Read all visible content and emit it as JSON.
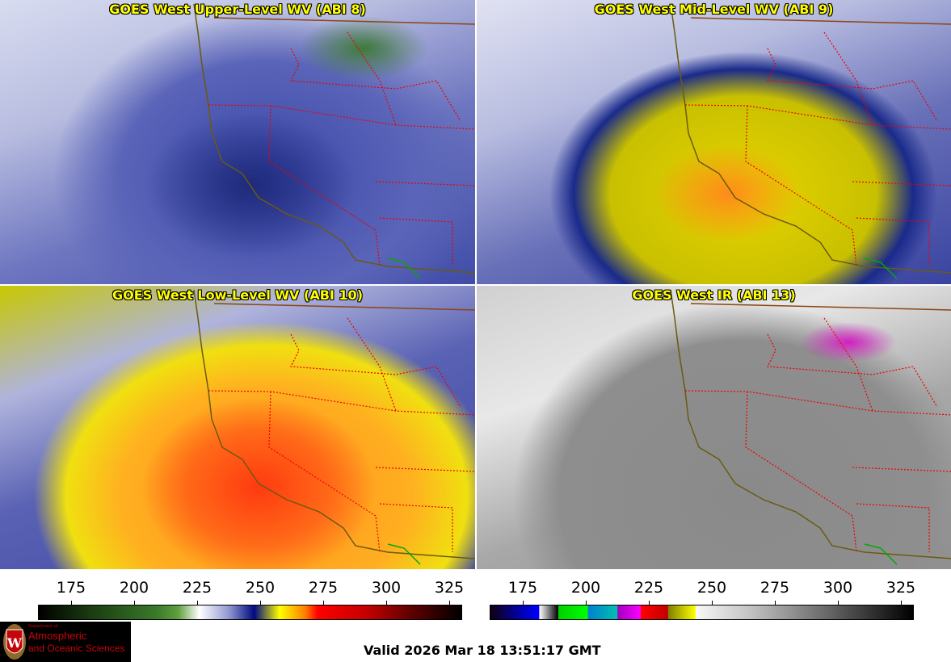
{
  "panels": [
    {
      "title": "GOES West Upper-Level WV (ABI 8)"
    },
    {
      "title": "GOES West Mid-Level WV (ABI 9)"
    },
    {
      "title": "GOES West Low-Level WV (ABI 10)"
    },
    {
      "title": "GOES West IR (ABI 13)"
    }
  ],
  "colorbars": [
    {
      "name": "water-vapor",
      "ticks": [
        "175",
        "200",
        "225",
        "250",
        "275",
        "300",
        "325"
      ]
    },
    {
      "name": "infrared",
      "ticks": [
        "175",
        "200",
        "225",
        "250",
        "275",
        "300",
        "325"
      ]
    }
  ],
  "logo": {
    "small": "Department of",
    "line1": "Atmospheric",
    "line2": "and Oceanic Sciences",
    "seal": "W"
  },
  "valid_time": "Valid 2026 Mar 18 13:51:17 GMT"
}
